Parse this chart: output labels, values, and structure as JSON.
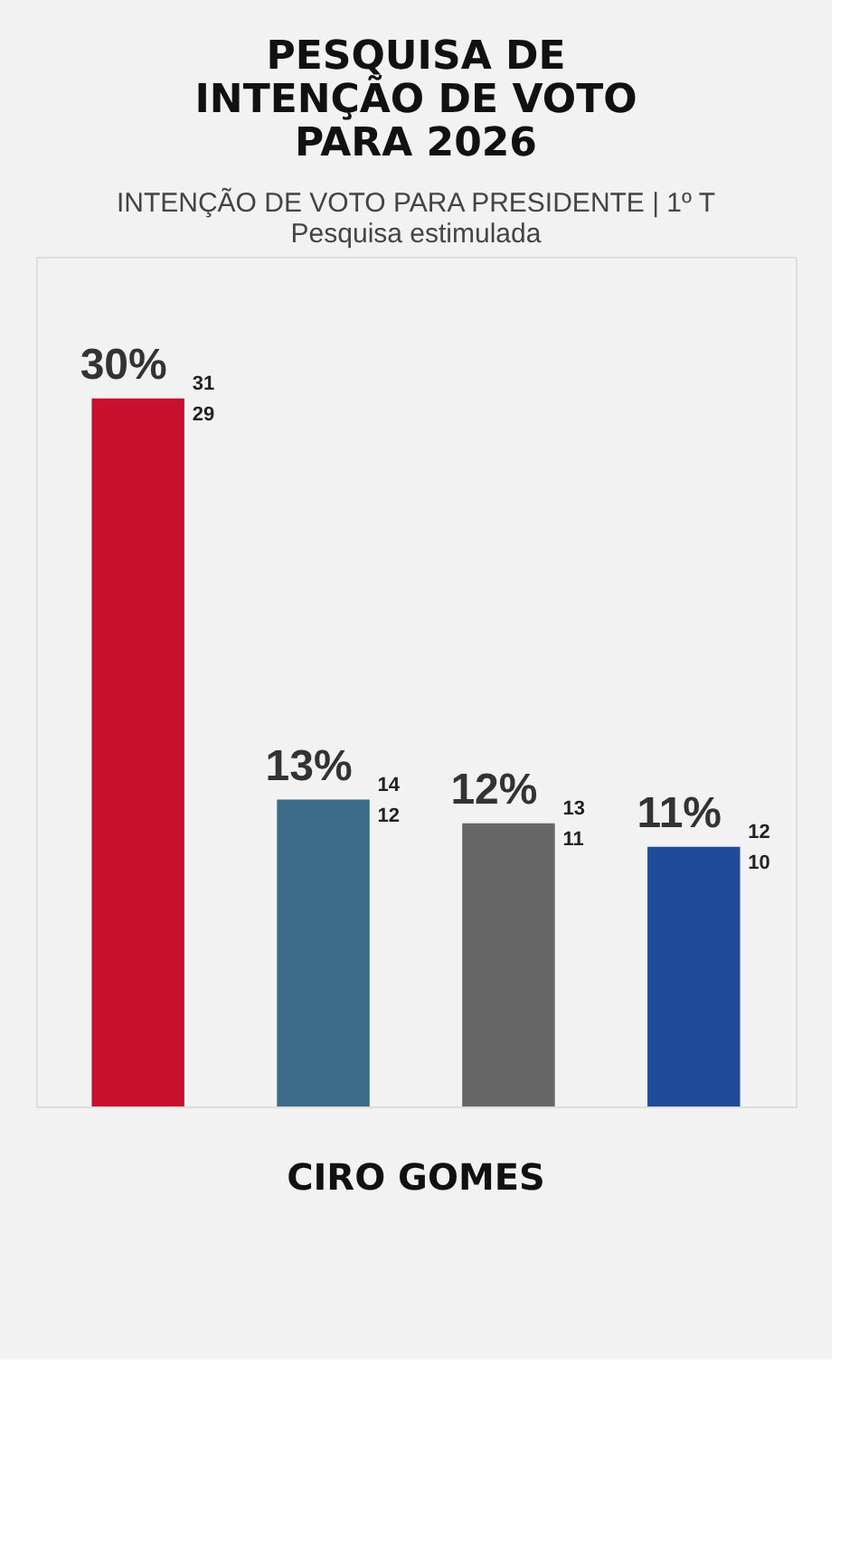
{
  "chart_data": {
    "type": "bar",
    "title": "PESQUISA DE INTENÇÃO DE VOTO PARA 2026",
    "subtitle": "INTENÇÃO DE VOTO PARA PRESIDENTE | 1º T",
    "annotations": [
      "Pesquisa estimulada",
      "CIRO GOMES",
      "31",
      "29",
      "14",
      "12",
      "13",
      "11",
      "12",
      "10"
    ],
    "categories": [
      null,
      null,
      null,
      null
    ],
    "values": [
      30,
      13,
      12,
      11
    ],
    "value_labels": [
      "30%",
      "13%",
      "12%",
      "11%"
    ],
    "colors": [
      "#c8102e",
      "#3b6b86",
      "#666666",
      "#1f4b99"
    ]
  }
}
